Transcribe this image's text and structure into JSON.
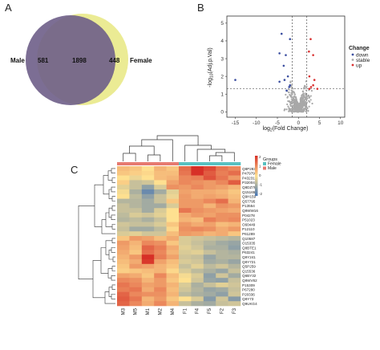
{
  "panels": {
    "a": "A",
    "b": "B",
    "c": "C"
  },
  "venn": {
    "left_label": "Male",
    "right_label": "Female",
    "left_only": "581",
    "overlap": "1898",
    "right_only": "448",
    "left_color": "#6e5e88",
    "right_color": "#eaea8e"
  },
  "chart_data": [
    {
      "type": "scatter",
      "xlabel": "log2(Fold Change)",
      "ylabel": "-log10(Adj.p.Val)",
      "xlim": [
        -17,
        11
      ],
      "ylim": [
        -0.3,
        5.4
      ],
      "x_ticks": [
        "-15",
        "-10",
        "-5",
        "0",
        "5",
        "10"
      ],
      "y_ticks": [
        "0",
        "1",
        "2",
        "3",
        "4",
        "5"
      ],
      "thresholds": {
        "x": [
          -1.5,
          2
        ],
        "y": 1.3
      },
      "legend": {
        "title": "Change",
        "entries": [
          "down",
          "stable",
          "up"
        ],
        "placement": "right"
      },
      "series": [
        {
          "name": "down",
          "color": "#3b4ea0",
          "points": [
            [
              -15,
              1.8
            ],
            [
              -4,
              4.4
            ],
            [
              -4.5,
              3.3
            ],
            [
              -3,
              3.2
            ],
            [
              -2,
              4.1
            ],
            [
              -2.5,
              2
            ],
            [
              -3.3,
              1.8
            ],
            [
              -2.8,
              1.2
            ],
            [
              -2,
              1.5
            ],
            [
              -3.5,
              2.6
            ],
            [
              -2.2,
              1.4
            ],
            [
              -4.5,
              1.7
            ]
          ]
        },
        {
          "name": "stable",
          "color": "#a8a8a8",
          "points": []
        },
        {
          "name": "up",
          "color": "#d93030",
          "points": [
            [
              2.5,
              3.4
            ],
            [
              3.5,
              3.2
            ],
            [
              2.6,
              2
            ],
            [
              3,
              1.4
            ],
            [
              3.5,
              1.5
            ],
            [
              2.6,
              1.3
            ],
            [
              3.8,
              1.8
            ],
            [
              2.9,
              4.1
            ],
            [
              4.5,
              1.3
            ]
          ]
        }
      ]
    },
    {
      "type": "heatmap",
      "color_scale": {
        "ticks": [
          "2",
          "1",
          "0",
          "-1",
          "-2"
        ],
        "colors": [
          "#d73027",
          "#fee090",
          "#4575b4"
        ]
      },
      "groups_legend": {
        "title": "Groups",
        "entries": [
          {
            "name": "Female",
            "color": "#57c1c1"
          },
          {
            "name": "Male",
            "color": "#e67a70"
          }
        ]
      },
      "columns": [
        "M3",
        "M5",
        "M1",
        "M2",
        "M4",
        "F1",
        "F4",
        "F5",
        "F2",
        "F3"
      ],
      "column_groups": [
        "Male",
        "Male",
        "Male",
        "Male",
        "Male",
        "Female",
        "Female",
        "Female",
        "Female",
        "Female"
      ],
      "rows": [
        "Q8P283",
        "P47979",
        "P43231",
        "P32004",
        "Q8DZ78",
        "Q15165",
        "Q9H159",
        "Q57795",
        "P13554",
        "Q8WW16",
        "P04278",
        "P51023",
        "O60449",
        "P12110",
        "P61289",
        "Q10587",
        "O15335",
        "Q8BTE1",
        "P63241",
        "Q9Y241",
        "Q8Y721",
        "Q5P259",
        "Q15536",
        "Q6BY32",
        "Q8WV82",
        "P15309",
        "P67280",
        "P20336",
        "Q8Y73",
        "Q9UKG4"
      ],
      "values": [
        [
          0.4,
          0.3,
          0.0,
          0.5,
          0.3,
          1.3,
          2.3,
          1.7,
          1.2,
          1.0
        ],
        [
          0.3,
          0.2,
          0.1,
          0.4,
          0.4,
          1.2,
          2.0,
          1.5,
          1.1,
          1.3
        ],
        [
          0.0,
          -0.2,
          0.0,
          0.4,
          0.5,
          1.0,
          1.1,
          1.6,
          1.2,
          0.8
        ],
        [
          0.2,
          -0.6,
          -0.5,
          0.0,
          0.7,
          1.0,
          0.9,
          0.8,
          1.0,
          1.5
        ],
        [
          -0.3,
          -0.6,
          -1.2,
          -0.4,
          0.9,
          0.8,
          1.0,
          0.8,
          0.7,
          0.5
        ],
        [
          -0.1,
          -0.9,
          -1.6,
          -1.0,
          -0.3,
          0.7,
          0.6,
          0.6,
          0.5,
          0.3
        ],
        [
          0.0,
          -0.7,
          -1.2,
          -0.6,
          -0.2,
          0.8,
          0.6,
          0.7,
          0.6,
          0.4
        ],
        [
          -0.8,
          -0.8,
          -1.0,
          -0.6,
          0.3,
          0.8,
          0.8,
          1.0,
          1.3,
          0.5
        ],
        [
          -0.6,
          -0.8,
          -1.0,
          -1.0,
          -0.4,
          0.8,
          0.8,
          0.5,
          0.9,
          0.8
        ],
        [
          -0.6,
          -0.6,
          -1.0,
          -0.4,
          0.0,
          1.2,
          0.9,
          0.8,
          0.7,
          0.6
        ],
        [
          -0.7,
          -0.4,
          -0.5,
          -0.3,
          0.0,
          0.6,
          0.8,
          0.7,
          0.9,
          0.9
        ],
        [
          -0.8,
          -0.7,
          -0.9,
          -0.6,
          0.0,
          0.5,
          0.4,
          1.1,
          0.9,
          1.0
        ],
        [
          -0.5,
          -0.6,
          -0.6,
          -0.4,
          0.3,
          0.8,
          0.6,
          0.7,
          0.4,
          0.5
        ],
        [
          -0.6,
          -1.0,
          -1.0,
          -0.7,
          0.1,
          0.9,
          1.0,
          0.9,
          0.6,
          0.8
        ],
        [
          -0.4,
          -0.3,
          -0.5,
          -0.5,
          0.4,
          0.8,
          0.7,
          0.5,
          0.6,
          0.3
        ],
        [
          0.3,
          0.8,
          0.7,
          0.4,
          0.6,
          -0.4,
          -0.5,
          -0.6,
          -0.7,
          -0.8
        ],
        [
          0.8,
          0.5,
          1.0,
          0.9,
          0.3,
          -0.4,
          -0.6,
          -0.8,
          -1.0,
          -1.1
        ],
        [
          0.7,
          0.4,
          1.4,
          1.1,
          0.6,
          -0.3,
          -0.5,
          -0.9,
          -0.9,
          -1.2
        ],
        [
          0.6,
          0.3,
          1.3,
          1.0,
          0.5,
          -0.4,
          -0.3,
          -0.6,
          -0.8,
          -0.9
        ],
        [
          0.5,
          0.8,
          2.3,
          1.1,
          0.7,
          -0.5,
          -0.6,
          -1.1,
          -0.8,
          -0.8
        ],
        [
          0.4,
          0.6,
          1.9,
          0.7,
          0.4,
          -0.4,
          -0.5,
          -1.0,
          -0.9,
          -1.1
        ],
        [
          0.3,
          0.8,
          0.7,
          0.5,
          0.3,
          -0.6,
          -0.3,
          -0.7,
          -0.5,
          -0.8
        ],
        [
          0.2,
          0.3,
          0.4,
          0.5,
          0.1,
          -0.4,
          -0.7,
          -0.9,
          -1.1,
          -0.6
        ],
        [
          0.7,
          0.6,
          0.3,
          1.0,
          0.4,
          -0.1,
          -0.4,
          -1.2,
          -0.5,
          -1.0
        ],
        [
          1.0,
          0.9,
          0.5,
          0.8,
          0.3,
          0.0,
          -0.5,
          -1.1,
          -1.2,
          -0.6
        ],
        [
          1.2,
          1.0,
          0.7,
          0.8,
          0.5,
          -0.4,
          -0.9,
          -0.6,
          -0.3,
          -0.5
        ],
        [
          1.1,
          1.2,
          0.6,
          1.0,
          0.4,
          -0.5,
          -0.8,
          -1.1,
          -1.0,
          -0.6
        ],
        [
          1.4,
          1.0,
          0.9,
          0.9,
          0.5,
          -0.7,
          -0.9,
          -1.0,
          -1.2,
          -0.5
        ],
        [
          1.5,
          1.2,
          0.5,
          0.8,
          0.3,
          0.0,
          -0.4,
          -1.3,
          -0.5,
          -1.3
        ],
        [
          1.4,
          1.0,
          0.6,
          1.0,
          0.5,
          -0.6,
          -0.9,
          -1.0,
          -0.6,
          -0.5
        ]
      ]
    }
  ]
}
